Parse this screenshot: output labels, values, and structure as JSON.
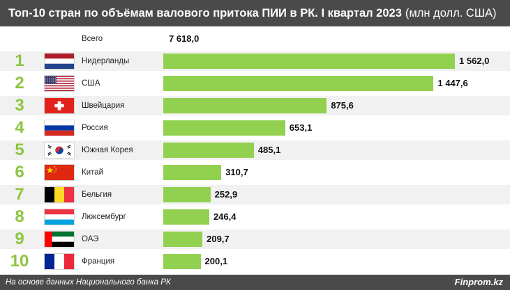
{
  "chart_data": {
    "type": "bar",
    "orientation": "horizontal",
    "title": "Топ-10 стран по объёмам валового притока ПИИ в РК. I квартал 2023",
    "unit": "(млн долл. США)",
    "total": {
      "label": "Всего",
      "value": 7618.0,
      "display": "7 618,0"
    },
    "categories": [
      "Нидерланды",
      "США",
      "Швейцария",
      "Россия",
      "Южная Корея",
      "Китай",
      "Бельгия",
      "Люксембург",
      "ОАЭ",
      "Франция"
    ],
    "ranks": [
      "1",
      "2",
      "3",
      "4",
      "5",
      "6",
      "7",
      "8",
      "9",
      "10"
    ],
    "flag_icons": [
      "netherlands-flag-icon",
      "usa-flag-icon",
      "switzerland-flag-icon",
      "russia-flag-icon",
      "south-korea-flag-icon",
      "china-flag-icon",
      "belgium-flag-icon",
      "luxembourg-flag-icon",
      "uae-flag-icon",
      "france-flag-icon"
    ],
    "values": [
      1562.0,
      1447.6,
      875.6,
      653.1,
      485.1,
      310.7,
      252.9,
      246.4,
      209.7,
      200.1
    ],
    "value_labels": [
      "1 562,0",
      "1 447,6",
      "875,6",
      "653,1",
      "485,1",
      "310,7",
      "252,9",
      "246,4",
      "209,7",
      "200,1"
    ],
    "xlim": [
      0,
      1562.0
    ],
    "colors": {
      "bar": "#92d050",
      "rank": "#8dc63f",
      "header": "#4a4a4a"
    }
  },
  "footer": {
    "source": "На основе данных Национального банка РК",
    "brand": "Finprom.kz"
  }
}
